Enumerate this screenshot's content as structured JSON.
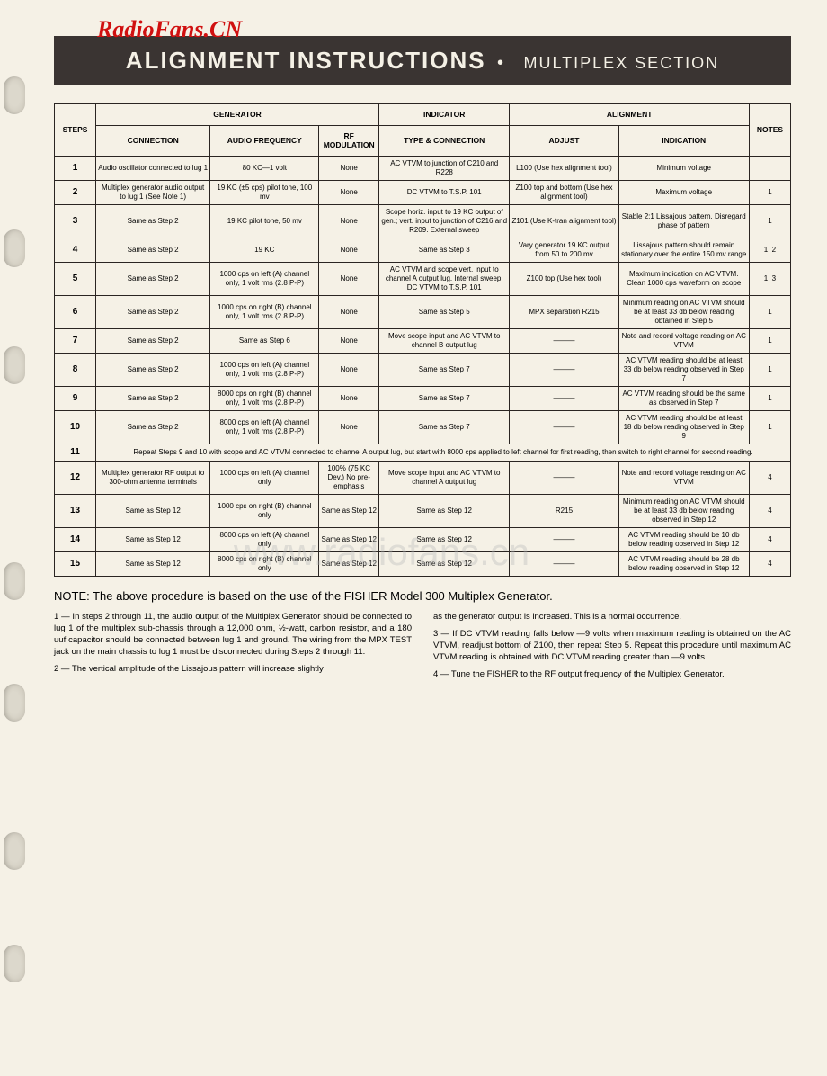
{
  "watermark_top": "RadioFans.CN",
  "watermark_mid": "www.radiofans.cn",
  "banner": {
    "main": "ALIGNMENT INSTRUCTIONS",
    "sub": "MULTIPLEX SECTION"
  },
  "headers": {
    "group_generator": "GENERATOR",
    "group_indicator": "INDICATOR",
    "group_alignment": "ALIGNMENT",
    "steps": "STEPS",
    "connection": "CONNECTION",
    "audio_freq": "AUDIO FREQUENCY",
    "rf_mod": "RF MODULATION",
    "type_conn": "TYPE & CONNECTION",
    "adjust": "ADJUST",
    "indication": "INDICATION",
    "notes": "NOTES"
  },
  "rows": [
    {
      "step": "1",
      "connection": "Audio oscillator connected to lug 1",
      "audio": "80 KC—1 volt",
      "rf": "None",
      "type": "AC VTVM to junction of C210 and R228",
      "adjust": "L100 (Use hex alignment tool)",
      "indication": "Minimum voltage",
      "notes": ""
    },
    {
      "step": "2",
      "connection": "Multiplex generator audio output to lug 1 (See Note 1)",
      "audio": "19 KC (±5 cps) pilot tone, 100 mv",
      "rf": "None",
      "type": "DC VTVM to T.S.P. 101",
      "adjust": "Z100 top and bottom (Use hex alignment tool)",
      "indication": "Maximum voltage",
      "notes": "1"
    },
    {
      "step": "3",
      "connection": "Same as Step 2",
      "audio": "19 KC pilot tone, 50 mv",
      "rf": "None",
      "type": "Scope horiz. input to 19 KC output of gen.; vert. input to junction of C216 and R209. External sweep",
      "adjust": "Z101 (Use K-tran alignment tool)",
      "indication": "Stable 2:1 Lissajous pattern. Disregard phase of pattern",
      "notes": "1"
    },
    {
      "step": "4",
      "connection": "Same as Step 2",
      "audio": "19 KC",
      "rf": "None",
      "type": "Same as Step 3",
      "adjust": "Vary generator 19 KC output from 50 to 200 mv",
      "indication": "Lissajous pattern should remain stationary over the entire 150 mv range",
      "notes": "1, 2"
    },
    {
      "step": "5",
      "connection": "Same as Step 2",
      "audio": "1000 cps on left (A) channel only, 1 volt rms (2.8 P-P)",
      "rf": "None",
      "type": "AC VTVM and scope vert. input to channel A output lug. Internal sweep. DC VTVM to T.S.P. 101",
      "adjust": "Z100 top (Use hex tool)",
      "indication": "Maximum indication on AC VTVM. Clean 1000 cps waveform on scope",
      "notes": "1, 3"
    },
    {
      "step": "6",
      "connection": "Same as Step 2",
      "audio": "1000 cps on right (B) channel only, 1 volt rms (2.8 P-P)",
      "rf": "None",
      "type": "Same as Step 5",
      "adjust": "MPX separation R215",
      "indication": "Minimum reading on AC VTVM should be at least 33 db below reading obtained in Step 5",
      "notes": "1"
    },
    {
      "step": "7",
      "connection": "Same as Step 2",
      "audio": "Same as Step 6",
      "rf": "None",
      "type": "Move scope input and AC VTVM to channel B output lug",
      "adjust": "———",
      "indication": "Note and record voltage reading on AC VTVM",
      "notes": "1"
    },
    {
      "step": "8",
      "connection": "Same as Step 2",
      "audio": "1000 cps on left (A) channel only, 1 volt rms (2.8 P-P)",
      "rf": "None",
      "type": "Same as Step 7",
      "adjust": "———",
      "indication": "AC VTVM reading should be at least 33 db below reading observed in Step 7",
      "notes": "1"
    },
    {
      "step": "9",
      "connection": "Same as Step 2",
      "audio": "8000 cps on right (B) channel only, 1 volt rms (2.8 P-P)",
      "rf": "None",
      "type": "Same as Step 7",
      "adjust": "———",
      "indication": "AC VTVM reading should be the same as observed in Step 7",
      "notes": "1"
    },
    {
      "step": "10",
      "connection": "Same as Step 2",
      "audio": "8000 cps on left (A) channel only, 1 volt rms (2.8 P-P)",
      "rf": "None",
      "type": "Same as Step 7",
      "adjust": "———",
      "indication": "AC VTVM reading should be at least 18 db below reading observed in Step 9",
      "notes": "1"
    }
  ],
  "row11": {
    "step": "11",
    "text": "Repeat Steps 9 and 10 with scope and AC VTVM connected to channel A output lug, but start with 8000 cps applied to left channel for first reading, then switch to right channel for second reading."
  },
  "rows2": [
    {
      "step": "12",
      "connection": "Multiplex generator RF output to 300-ohm antenna terminals",
      "audio": "1000 cps on left (A) channel only",
      "rf": "100% (75 KC Dev.) No pre-emphasis",
      "type": "Move scope input and AC VTVM to channel A output lug",
      "adjust": "———",
      "indication": "Note and record voltage reading on AC VTVM",
      "notes": "4"
    },
    {
      "step": "13",
      "connection": "Same as Step 12",
      "audio": "1000 cps on right (B) channel only",
      "rf": "Same as Step 12",
      "type": "Same as Step 12",
      "adjust": "R215",
      "indication": "Minimum reading on AC VTVM should be at least 33 db below reading observed in Step 12",
      "notes": "4"
    },
    {
      "step": "14",
      "connection": "Same as Step 12",
      "audio": "8000 cps on left (A) channel only",
      "rf": "Same as Step 12",
      "type": "Same as Step 12",
      "adjust": "———",
      "indication": "AC VTVM reading should be 10 db below reading observed in Step 12",
      "notes": "4"
    },
    {
      "step": "15",
      "connection": "Same as Step 12",
      "audio": "8000 cps on right (B) channel only",
      "rf": "Same as Step 12",
      "type": "Same as Step 12",
      "adjust": "———",
      "indication": "AC VTVM reading should be 28 db below reading observed in Step 12",
      "notes": "4"
    }
  ],
  "footer_note": "NOTE: The above procedure is based on the use of the FISHER Model 300 Multiplex Generator.",
  "notes_left": [
    "1 — In steps 2 through 11, the audio output of the Multiplex Generator should be connected to lug 1 of the multiplex sub-chassis through a 12,000 ohm, ½-watt, carbon resistor, and a 180 uuf capacitor should be connected between lug 1 and ground. The wiring from the MPX TEST jack on the main chassis to lug 1 must be disconnected during Steps 2 through 11.",
    "2 — The vertical amplitude of the Lissajous pattern will increase slightly"
  ],
  "notes_right": [
    "as the generator output is increased. This is a normal occurrence.",
    "3 — If DC VTVM reading falls below —9 volts when maximum reading is obtained on the AC VTVM, readjust bottom of Z100, then repeat Step 5. Repeat this procedure until maximum AC VTVM reading is obtained with DC VTVM reading greater than —9 volts.",
    "4 — Tune the FISHER to the RF output frequency of the Multiplex Generator."
  ],
  "punch_tops": [
    85,
    255,
    385,
    625,
    760,
    925,
    1050
  ]
}
